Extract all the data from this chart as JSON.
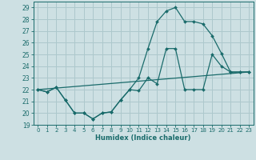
{
  "xlabel": "Humidex (Indice chaleur)",
  "bg_color": "#cde0e3",
  "grid_color": "#adc8cc",
  "line_color": "#1a6b6b",
  "xlim": [
    -0.5,
    23.5
  ],
  "ylim": [
    19,
    29.5
  ],
  "xticks": [
    0,
    1,
    2,
    3,
    4,
    5,
    6,
    7,
    8,
    9,
    10,
    11,
    12,
    13,
    14,
    15,
    16,
    17,
    18,
    19,
    20,
    21,
    22,
    23
  ],
  "yticks": [
    19,
    20,
    21,
    22,
    23,
    24,
    25,
    26,
    27,
    28,
    29
  ],
  "line1_x": [
    0,
    1,
    2,
    3,
    4,
    5,
    6,
    7,
    8,
    9,
    10,
    11,
    12,
    13,
    14,
    15,
    16,
    17,
    18,
    19,
    20,
    21,
    22,
    23
  ],
  "line1_y": [
    22.0,
    21.8,
    22.2,
    21.1,
    20.0,
    20.0,
    19.5,
    20.0,
    20.1,
    21.1,
    22.0,
    21.9,
    23.0,
    22.5,
    25.5,
    25.5,
    22.0,
    22.0,
    22.0,
    25.0,
    24.0,
    23.5,
    23.5,
    23.5
  ],
  "line2_x": [
    0,
    1,
    2,
    3,
    4,
    5,
    6,
    7,
    8,
    9,
    10,
    11,
    12,
    13,
    14,
    15,
    16,
    17,
    18,
    19,
    20,
    21,
    22,
    23
  ],
  "line2_y": [
    22.0,
    21.8,
    22.2,
    21.1,
    20.0,
    20.0,
    19.5,
    20.0,
    20.1,
    21.1,
    22.0,
    23.0,
    25.5,
    27.8,
    28.7,
    29.0,
    27.8,
    27.8,
    27.6,
    26.6,
    25.1,
    23.5,
    23.5,
    23.5
  ],
  "line3_x": [
    0,
    23
  ],
  "line3_y": [
    22.0,
    23.5
  ]
}
